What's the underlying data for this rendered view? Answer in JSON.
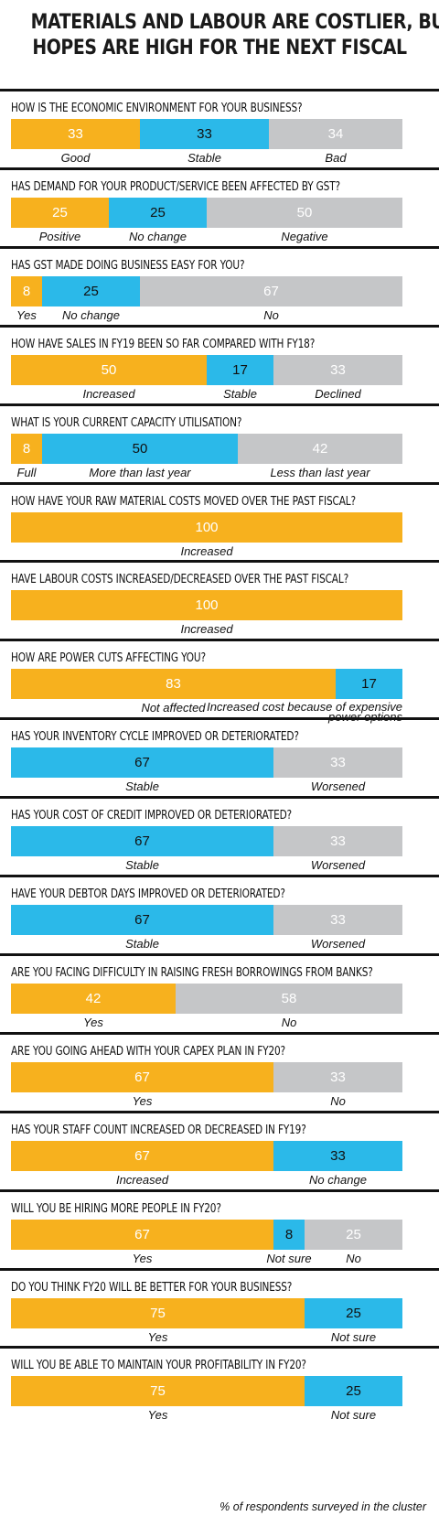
{
  "title_line1": "MATERIALS AND LABOUR ARE COSTLIER, BUT",
  "title_line2": "HOPES ARE HIGH FOR THE NEXT FISCAL",
  "footnote": "% of respondents surveyed in the cluster",
  "colors": {
    "orange": "#F7B11E",
    "blue": "#2BB9E9",
    "grey": "#C5C6C8"
  },
  "chart_data": {
    "type": "bar",
    "orientation": "horizontal-stacked-100",
    "questions": [
      {
        "question": "HOW IS THE ECONOMIC ENVIRONMENT FOR YOUR BUSINESS?",
        "segments": [
          {
            "value": 33,
            "label": "Good",
            "color": "orange"
          },
          {
            "value": 33,
            "label": "Stable",
            "color": "blue"
          },
          {
            "value": 34,
            "label": "Bad",
            "color": "grey"
          }
        ]
      },
      {
        "question": "HAS DEMAND FOR YOUR PRODUCT/SERVICE BEEN AFFECTED BY GST?",
        "segments": [
          {
            "value": 25,
            "label": "Positive",
            "color": "orange"
          },
          {
            "value": 25,
            "label": "No change",
            "color": "blue"
          },
          {
            "value": 50,
            "label": "Negative",
            "color": "grey"
          }
        ]
      },
      {
        "question": "HAS GST MADE DOING BUSINESS EASY FOR YOU?",
        "segments": [
          {
            "value": 8,
            "label": "Yes",
            "color": "orange"
          },
          {
            "value": 25,
            "label": "No change",
            "color": "blue"
          },
          {
            "value": 67,
            "label": "No",
            "color": "grey"
          }
        ]
      },
      {
        "question": "HOW HAVE SALES IN FY19 BEEN SO FAR COMPARED WITH FY18?",
        "segments": [
          {
            "value": 50,
            "label": "Increased",
            "color": "orange"
          },
          {
            "value": 17,
            "label": "Stable",
            "color": "blue"
          },
          {
            "value": 33,
            "label": "Declined",
            "color": "grey"
          }
        ]
      },
      {
        "question": "WHAT IS YOUR CURRENT CAPACITY UTILISATION?",
        "segments": [
          {
            "value": 8,
            "label": "Full",
            "color": "orange"
          },
          {
            "value": 50,
            "label": "More than last year",
            "color": "blue"
          },
          {
            "value": 42,
            "label": "Less than last year",
            "color": "grey"
          }
        ]
      },
      {
        "question": "HOW HAVE YOUR RAW MATERIAL COSTS MOVED OVER THE PAST FISCAL?",
        "segments": [
          {
            "value": 100,
            "label": "Increased",
            "color": "orange"
          }
        ]
      },
      {
        "question": "HAVE LABOUR COSTS INCREASED/DECREASED OVER THE PAST FISCAL?",
        "segments": [
          {
            "value": 100,
            "label": "Increased",
            "color": "orange"
          }
        ]
      },
      {
        "question": "HOW ARE POWER CUTS AFFECTING YOU?",
        "segments": [
          {
            "value": 83,
            "label": "Not affected",
            "color": "orange"
          },
          {
            "value": 17,
            "label": "Increased cost because of expensive",
            "label2": "power options",
            "color": "blue"
          }
        ]
      },
      {
        "question": "HAS YOUR INVENTORY CYCLE IMPROVED OR DETERIORATED?",
        "segments": [
          {
            "value": 67,
            "label": "Stable",
            "color": "blue"
          },
          {
            "value": 33,
            "label": "Worsened",
            "color": "grey"
          }
        ]
      },
      {
        "question": "HAS YOUR COST OF CREDIT IMPROVED OR DETERIORATED?",
        "segments": [
          {
            "value": 67,
            "label": "Stable",
            "color": "blue"
          },
          {
            "value": 33,
            "label": "Worsened",
            "color": "grey"
          }
        ]
      },
      {
        "question": "HAVE YOUR DEBTOR DAYS IMPROVED OR DETERIORATED?",
        "segments": [
          {
            "value": 67,
            "label": "Stable",
            "color": "blue"
          },
          {
            "value": 33,
            "label": "Worsened",
            "color": "grey"
          }
        ]
      },
      {
        "question": "ARE YOU FACING DIFFICULTY IN RAISING FRESH BORROWINGS FROM BANKS?",
        "segments": [
          {
            "value": 42,
            "label": "Yes",
            "color": "orange"
          },
          {
            "value": 58,
            "label": "No",
            "color": "grey"
          }
        ]
      },
      {
        "question": "ARE YOU GOING AHEAD WITH YOUR CAPEX PLAN IN FY20?",
        "segments": [
          {
            "value": 67,
            "label": "Yes",
            "color": "orange"
          },
          {
            "value": 33,
            "label": "No",
            "color": "grey"
          }
        ]
      },
      {
        "question": "HAS YOUR STAFF COUNT INCREASED OR DECREASED IN FY19?",
        "segments": [
          {
            "value": 67,
            "label": "Increased",
            "color": "orange"
          },
          {
            "value": 33,
            "label": "No change",
            "color": "blue"
          }
        ]
      },
      {
        "question": "WILL YOU BE HIRING MORE PEOPLE IN FY20?",
        "segments": [
          {
            "value": 67,
            "label": "Yes",
            "color": "orange"
          },
          {
            "value": 8,
            "label": "Not sure",
            "color": "blue"
          },
          {
            "value": 25,
            "label": "No",
            "color": "grey"
          }
        ]
      },
      {
        "question": "DO YOU THINK FY20 WILL BE BETTER FOR YOUR BUSINESS?",
        "segments": [
          {
            "value": 75,
            "label": "Yes",
            "color": "orange"
          },
          {
            "value": 25,
            "label": "Not sure",
            "color": "blue"
          }
        ]
      },
      {
        "question": "WILL YOU BE ABLE TO MAINTAIN YOUR PROFITABILITY IN FY20?",
        "segments": [
          {
            "value": 75,
            "label": "Yes",
            "color": "orange"
          },
          {
            "value": 25,
            "label": "Not sure",
            "color": "blue"
          }
        ]
      }
    ]
  }
}
